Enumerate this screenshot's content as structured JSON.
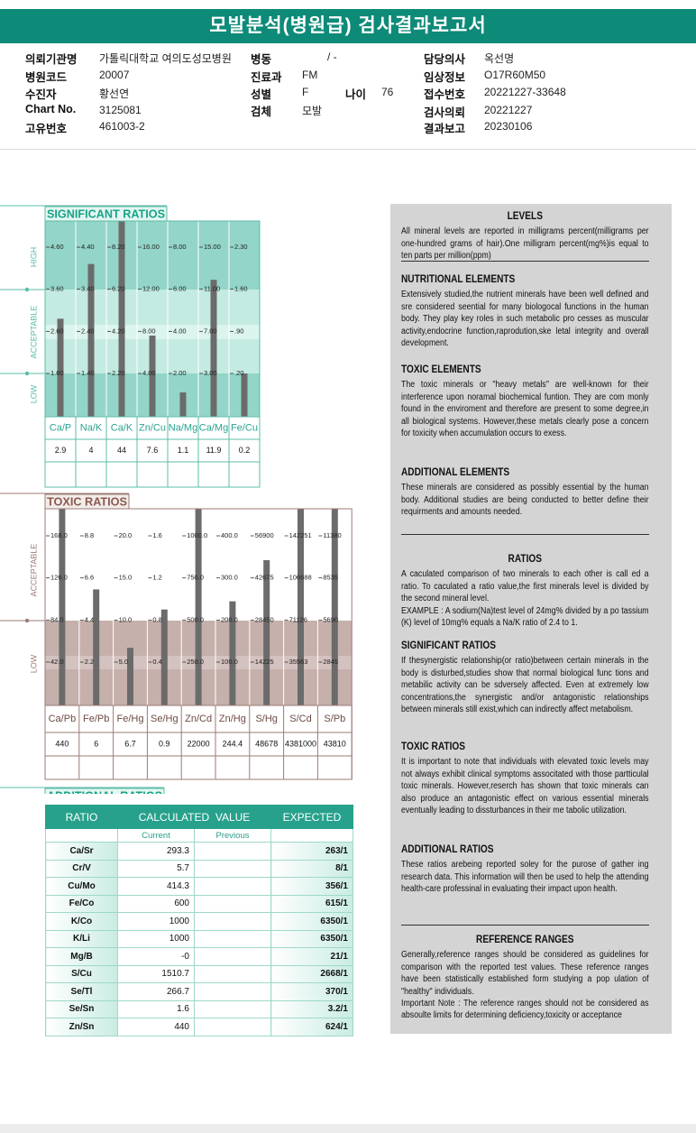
{
  "header": {
    "title": "모발분석(병원급) 검사결과보고서"
  },
  "info": {
    "rows": [
      [
        {
          "label": "의뢰기관명",
          "value": "가톨릭대학교 여의도성모병원"
        },
        {
          "label": "병동",
          "value": "/ -"
        },
        {
          "label": "담당의사",
          "value": "옥선명"
        }
      ],
      [
        {
          "label": "병원코드",
          "value": "20007"
        },
        {
          "label": "진료과",
          "value": "FM"
        },
        {
          "label": "임상정보",
          "value": "O17R60M50"
        }
      ],
      [
        {
          "label": "수진자",
          "value": "황선연"
        },
        {
          "label": "성별",
          "value": "F"
        },
        {
          "label": "나이",
          "value": "76"
        },
        {
          "label": "접수번호",
          "value": "20221227-33648"
        }
      ],
      [
        {
          "label": "Chart No.",
          "value": "3125081"
        },
        {
          "label": "검체",
          "value": "모발"
        },
        {
          "label": "검사의뢰",
          "value": "20221227"
        }
      ],
      [
        {
          "label": "고유번호",
          "value": "461003-2"
        },
        {
          "label": "결과보고",
          "value": "20230106"
        }
      ]
    ]
  },
  "significant_ratios": {
    "title": "SIGNIFICANT RATIOS",
    "axis_labels": [
      "HIGH",
      "ACCEPTABLE",
      "LOW"
    ],
    "columns": [
      {
        "name": "Ca/P",
        "value": 2.9,
        "ticks": [
          {
            "value": 4.6,
            "label": "4.60"
          },
          {
            "value": 3.6,
            "label": "3.60"
          },
          {
            "value": 2.6,
            "label": "2.60"
          },
          {
            "value": 1.6,
            "label": "1.60"
          }
        ]
      },
      {
        "name": "Na/K",
        "value": 4,
        "ticks": [
          {
            "value": 4.4,
            "label": "4.40"
          },
          {
            "value": 3.4,
            "label": "3.40"
          },
          {
            "value": 2.4,
            "label": "2.40"
          },
          {
            "value": 1.4,
            "label": "1.40"
          }
        ]
      },
      {
        "name": "Ca/K",
        "value": 44,
        "ticks": [
          {
            "value": 8.2,
            "label": "8.20"
          },
          {
            "value": 6.2,
            "label": "6.20"
          },
          {
            "value": 4.2,
            "label": "4.20"
          },
          {
            "value": 2.2,
            "label": "2.20"
          }
        ]
      },
      {
        "name": "Zn/Cu",
        "value": 7.6,
        "ticks": [
          {
            "value": 16,
            "label": "16.00"
          },
          {
            "value": 12,
            "label": "12.00"
          },
          {
            "value": 8,
            "label": "8.00"
          },
          {
            "value": 4,
            "label": "4.00"
          }
        ]
      },
      {
        "name": "Na/Mg",
        "value": 1.1,
        "ticks": [
          {
            "value": 8,
            "label": "8.00"
          },
          {
            "value": 6,
            "label": "6.00"
          },
          {
            "value": 4,
            "label": "4.00"
          },
          {
            "value": 2,
            "label": "2.00"
          }
        ]
      },
      {
        "name": "Ca/Mg",
        "value": 11.9,
        "ticks": [
          {
            "value": 15,
            "label": "15.00"
          },
          {
            "value": 11,
            "label": "11.00"
          },
          {
            "value": 7,
            "label": "7.00"
          },
          {
            "value": 3,
            "label": "3.00"
          }
        ]
      },
      {
        "name": "Fe/Cu",
        "value": 0.2,
        "ticks": [
          {
            "value": 2.3,
            "label": "2.30"
          },
          {
            "value": 1.6,
            "label": "1.60"
          },
          {
            "value": 0.9,
            "label": ".90"
          },
          {
            "value": 0.2,
            "label": ".20"
          }
        ]
      }
    ]
  },
  "toxic_ratios": {
    "title": "TOXIC RATIOS",
    "axis_labels": [
      "ACCEPTABLE",
      "LOW"
    ],
    "columns": [
      {
        "name": "Ca/Pb",
        "value": 440,
        "ticks": [
          {
            "value": 168,
            "label": "168.0"
          },
          {
            "value": 126,
            "label": "126.0"
          },
          {
            "value": 84,
            "label": "84.0"
          },
          {
            "value": 42,
            "label": "42.0"
          }
        ]
      },
      {
        "name": "Fe/Pb",
        "value": 6,
        "ticks": [
          8.8,
          6.6,
          4.4,
          2.2
        ]
      },
      {
        "name": "Fe/Hg",
        "value": 6.7,
        "ticks": [
          {
            "value": 20,
            "label": "20.0"
          },
          {
            "value": 15,
            "label": "15.0"
          },
          {
            "value": 10,
            "label": "10.0"
          },
          {
            "value": 5,
            "label": "5.0"
          }
        ]
      },
      {
        "name": "Se/Hg",
        "value": 0.9,
        "ticks": [
          1.6,
          1.2,
          0.8,
          0.4
        ]
      },
      {
        "name": "Zn/Cd",
        "value": 22000,
        "ticks": [
          {
            "value": 1000,
            "label": "1000.0"
          },
          {
            "value": 750,
            "label": "750.0"
          },
          {
            "value": 500,
            "label": "500.0"
          },
          {
            "value": 250,
            "label": "250.0"
          }
        ]
      },
      {
        "name": "Zn/Hg",
        "value": 244.4,
        "ticks": [
          {
            "value": 400,
            "label": "400.0"
          },
          {
            "value": 300,
            "label": "300.0"
          },
          {
            "value": 200,
            "label": "200.0"
          },
          {
            "value": 100,
            "label": "100.0"
          }
        ]
      },
      {
        "name": "S/Hg",
        "value": 48678,
        "ticks": [
          56900,
          42675,
          28450,
          14225
        ]
      },
      {
        "name": "S/Cd",
        "value": 4381000,
        "ticks": [
          142251,
          106688,
          71126,
          35563
        ]
      },
      {
        "name": "S/Pb",
        "value": 43810,
        "ticks": [
          11380,
          8535,
          5690,
          2845
        ]
      }
    ]
  },
  "additional_ratios": {
    "title": "ADDITIONAL RATIOS",
    "headers": [
      "RATIO",
      "CALCULATED  VALUE",
      "EXPECTED"
    ],
    "subheaders": [
      "Current",
      "Previous"
    ],
    "rows": [
      [
        "Ca/Sr",
        293.3,
        "263/1"
      ],
      [
        "Cr/V",
        5.7,
        "8/1"
      ],
      [
        "Cu/Mo",
        414.3,
        "356/1"
      ],
      [
        "Fe/Co",
        600,
        "615/1"
      ],
      [
        "K/Co",
        1000,
        "6350/1"
      ],
      [
        "K/Li",
        1000,
        "6350/1"
      ],
      [
        "Mg/B",
        "-0",
        "21/1"
      ],
      [
        "S/Cu",
        1510.7,
        "2668/1"
      ],
      [
        "Se/Tl",
        266.7,
        "370/1"
      ],
      [
        "Se/Sn",
        1.6,
        "3.2/1"
      ],
      [
        "Zn/Sn",
        440,
        "624/1"
      ]
    ]
  },
  "explanations": [
    {
      "heading": "LEVELS",
      "paragraphs": [
        "All mineral levels are reported in milligrams percent(milligrams per one-hundred grams of hair).One milligram percent(mg%)is equal to ten parts per million(ppm)"
      ]
    },
    {
      "heading": "NUTRITIONAL ELEMENTS",
      "paragraphs": [
        "Extensively studied,the nutrient minerals have been well defined and sre considered seential for many biologocal functions in the human body. They play key roles in such metabolic pro cesses as muscular activity,endocrine function,raprodution,ske letal integrity and overall development."
      ]
    },
    {
      "heading": "TOXIC ELEMENTS",
      "paragraphs": [
        "The toxic minerals or \"heavy metals\" are well-known for their interference upon noramal biochemical funtion. They are com monly found in the enviroment and therefore are present to some degree,in all biological systems. However,these metals clearly pose a concern for toxicity when accumulation occurs to exess."
      ]
    },
    {
      "heading": "ADDITIONAL ELEMENTS",
      "paragraphs": [
        "These minerals are considered as possibly essential by the human body. Additional studies are being conducted to better define their requirments and amounts needed."
      ]
    },
    {
      "heading": "RATIOS",
      "paragraphs": [
        "A caculated comparison of two minerals to each other is call ed a ratio. To caculated a ratio value,the first minerals level is divided by the second mineral level.",
        "EXAMPLE : A sodium(Na)test level of 24mg% divided by a po tassium (K) level of 10mg% equals a Na/K ratio of 2.4 to 1."
      ]
    },
    {
      "heading": "SIGNIFICANT RATIOS",
      "paragraphs": [
        "If thesynergistic relationship(or ratio)between certain minerals in the body is disturbed,studies show that normal biological func tions and metabilic activity can be sdversely affected. Even at extremely low concentrations,the synergistic and/or antagonistic relationships between minerals still exist,which can indirectly affect metabolism."
      ]
    },
    {
      "heading": "TOXIC RATIOS",
      "paragraphs": [
        "It is important to note that individuals with elevated toxic levels may not always exhibit clinical symptoms associtated with those partticulal toxic minerals. However,reserch has shown that toxic minerals can also produce an antagonistic effect on various essential minerals eventually leading to dissturbances in their me tabolic utilization."
      ]
    },
    {
      "heading": "ADDITIONAL RATIOS",
      "paragraphs": [
        "These ratios arebeing reported soley for the purose of gather ing research data. This information will then be used to help the attending health-care professinal in evaluating their impact upon health."
      ]
    },
    {
      "heading": "REFERENCE RANGES",
      "paragraphs": [
        "Generally,reference ranges should be considered as guidelines for comparison with the reported test values. These reference ranges have been statistically established form studying a pop ulation of \"healthy\" individuals.",
        "Important Note : The reference ranges should not be considered as absoulte limits for determining deficiency,toxicity or acceptance"
      ]
    }
  ]
}
